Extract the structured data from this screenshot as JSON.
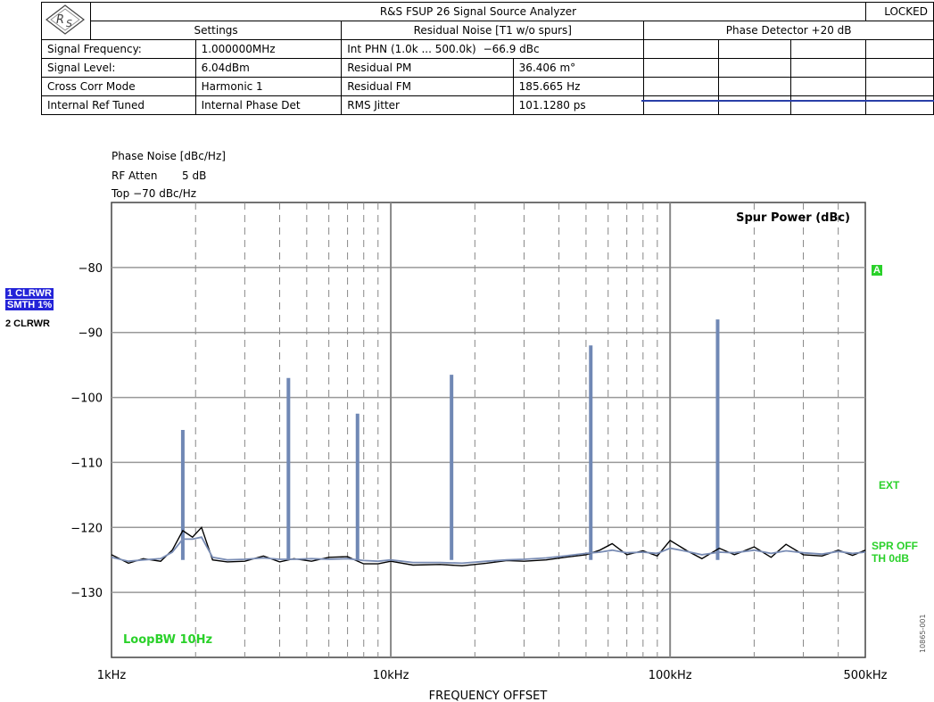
{
  "header": {
    "title": "R&S FSUP 26 Signal Source Analyzer",
    "status": "LOCKED",
    "settings_heading": "Settings",
    "noise_heading": "Residual Noise [T1 w/o spurs]",
    "detector_heading": "Phase Detector +20 dB",
    "rows": [
      {
        "label": "Signal Frequency:",
        "value": "1.000000MHz",
        "noise_label": "Int PHN (1.0k ... 500.0k)",
        "noise_value": "−66.9 dBc"
      },
      {
        "label": "Signal Level:",
        "value": "6.04dBm",
        "noise_label": "Residual PM",
        "noise_value": "36.406 m°"
      },
      {
        "label": "Cross Corr Mode",
        "value": "Harmonic 1",
        "noise_label": "Residual FM",
        "noise_value": "185.665 Hz"
      },
      {
        "label": "Internal Ref Tuned",
        "value": "Internal Phase Det",
        "noise_label": "RMS Jitter",
        "noise_value": "101.1280 ps"
      }
    ]
  },
  "meta": {
    "phase_noise_label": "Phase Noise [dBc/Hz]",
    "rf_atten_label": "RF Atten",
    "rf_atten_value": "5 dB",
    "top_label": "Top −70 dBc/Hz"
  },
  "traces": {
    "t1_line1": "1 CLRWR",
    "t1_line2": "SMTH 1%",
    "t2": "2 CLRWR"
  },
  "right_labels": {
    "a": "A",
    "ext": "EXT",
    "spr_off": "SPR OFF",
    "th": "TH 0dB"
  },
  "chart_data": {
    "type": "line",
    "title": "",
    "xlabel": "FREQUENCY OFFSET",
    "ylabel": "",
    "x_scale": "log",
    "xlim": [
      1000,
      500000
    ],
    "ylim": [
      -140,
      -70
    ],
    "x_ticks": [
      1000,
      10000,
      100000,
      500000
    ],
    "x_tick_labels": [
      "1kHz",
      "10kHz",
      "100kHz",
      "500kHz"
    ],
    "y_ticks": [
      -80,
      -90,
      -100,
      -110,
      -120,
      -130
    ],
    "y_tick_labels": [
      "−80",
      "−90",
      "−100",
      "−110",
      "−120",
      "−130"
    ],
    "grid": true,
    "inner_labels": {
      "spur_power": "Spur Power (dBc)",
      "loop_bw": "LoopBW 10Hz"
    },
    "series": [
      {
        "color": "#000000",
        "x": [
          1000,
          1150,
          1300,
          1500,
          1650,
          1800,
          1950,
          2100,
          2300,
          2600,
          3000,
          3500,
          4000,
          4500,
          5200,
          6000,
          7000,
          8000,
          9000,
          10000,
          12000,
          15000,
          18000,
          22000,
          26000,
          30000,
          36000,
          42000,
          50000,
          56000,
          62000,
          70000,
          80000,
          90000,
          100000,
          115000,
          130000,
          150000,
          170000,
          200000,
          230000,
          260000,
          300000,
          350000,
          400000,
          450000,
          500000
        ],
        "y": [
          -124.2,
          -125.5,
          -124.8,
          -125.2,
          -123.5,
          -120.5,
          -121.5,
          -120.0,
          -125.0,
          -125.3,
          -125.2,
          -124.4,
          -125.3,
          -124.8,
          -125.2,
          -124.6,
          -124.5,
          -125.6,
          -125.6,
          -125.2,
          -125.8,
          -125.7,
          -125.9,
          -125.5,
          -125.1,
          -125.2,
          -125.0,
          -124.6,
          -124.2,
          -123.5,
          -122.5,
          -124.2,
          -123.6,
          -124.4,
          -122.0,
          -123.6,
          -124.8,
          -123.2,
          -124.2,
          -123.0,
          -124.6,
          -122.6,
          -124.2,
          -124.4,
          -123.5,
          -124.3,
          -123.5
        ]
      },
      {
        "color": "#7a8db5",
        "x": [
          1000,
          1150,
          1300,
          1500,
          1650,
          1800,
          1950,
          2100,
          2300,
          2600,
          3000,
          3500,
          4000,
          4500,
          5200,
          6000,
          7000,
          8000,
          9000,
          10000,
          12000,
          15000,
          18000,
          22000,
          26000,
          30000,
          36000,
          42000,
          50000,
          56000,
          62000,
          70000,
          80000,
          90000,
          100000,
          115000,
          130000,
          150000,
          170000,
          200000,
          230000,
          260000,
          300000,
          350000,
          400000,
          450000,
          500000
        ],
        "y": [
          -124.6,
          -125.2,
          -125.0,
          -124.8,
          -123.8,
          -121.8,
          -121.8,
          -121.5,
          -124.6,
          -125.0,
          -124.9,
          -124.7,
          -124.9,
          -124.9,
          -124.8,
          -124.9,
          -124.8,
          -125.1,
          -125.2,
          -125.0,
          -125.4,
          -125.4,
          -125.5,
          -125.2,
          -125.0,
          -124.9,
          -124.7,
          -124.4,
          -124.0,
          -123.8,
          -123.5,
          -123.9,
          -123.8,
          -124.0,
          -123.2,
          -123.7,
          -124.2,
          -123.8,
          -123.9,
          -123.5,
          -124.0,
          -123.6,
          -123.9,
          -124.1,
          -123.7,
          -124.0,
          -123.8
        ]
      }
    ],
    "spurs": [
      {
        "x": 1800,
        "y": -105.0
      },
      {
        "x": 4300,
        "y": -97.0
      },
      {
        "x": 7600,
        "y": -102.5
      },
      {
        "x": 16500,
        "y": -96.5
      },
      {
        "x": 52000,
        "y": -92.0
      },
      {
        "x": 148000,
        "y": -88.0
      }
    ]
  }
}
